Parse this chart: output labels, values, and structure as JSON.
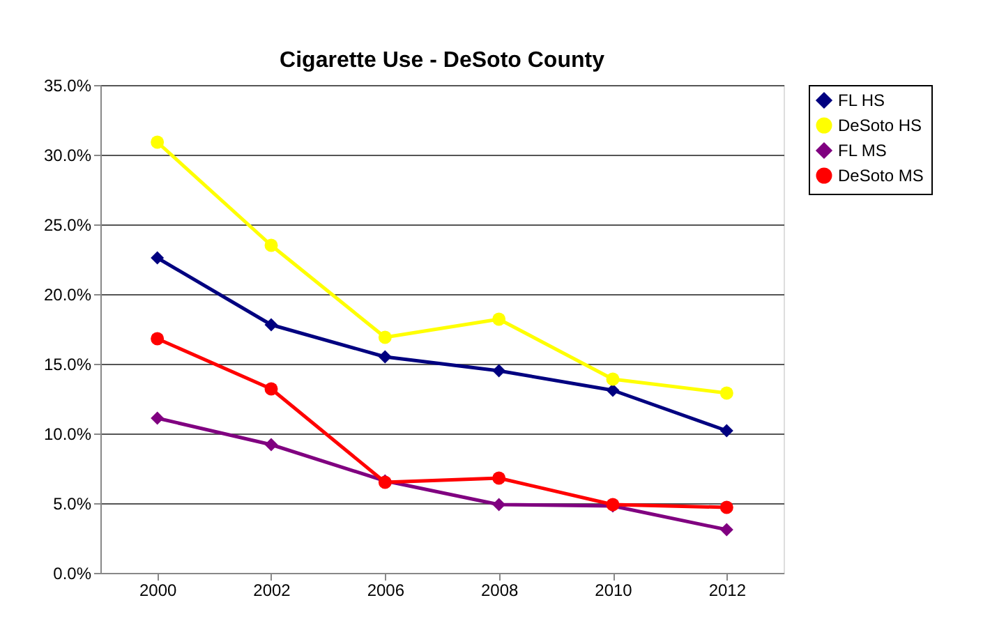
{
  "chart_data": {
    "type": "line",
    "title": "Cigarette Use - DeSoto County",
    "categories": [
      "2000",
      "2002",
      "2006",
      "2008",
      "2010",
      "2012"
    ],
    "series": [
      {
        "name": "FL HS",
        "color": "#000080",
        "marker": "diamond",
        "values": [
          22.6,
          17.8,
          15.5,
          14.5,
          13.1,
          10.2
        ]
      },
      {
        "name": "DeSoto HS",
        "color": "#ffff00",
        "marker": "circle",
        "values": [
          30.9,
          23.5,
          16.9,
          18.2,
          13.9,
          12.9
        ]
      },
      {
        "name": "FL MS",
        "color": "#800080",
        "marker": "diamond",
        "values": [
          11.1,
          9.2,
          6.6,
          4.9,
          4.8,
          3.1
        ]
      },
      {
        "name": "DeSoto MS",
        "color": "#ff0000",
        "marker": "circle",
        "values": [
          16.8,
          13.2,
          6.5,
          6.8,
          4.9,
          4.7
        ]
      }
    ],
    "ylim": [
      0,
      35
    ],
    "yticks": [
      {
        "value": 0,
        "label": "0.0%"
      },
      {
        "value": 5,
        "label": "5.0%"
      },
      {
        "value": 10,
        "label": "10.0%"
      },
      {
        "value": 15,
        "label": "15.0%"
      },
      {
        "value": 20,
        "label": "20.0%"
      },
      {
        "value": 25,
        "label": "25.0%"
      },
      {
        "value": 30,
        "label": "30.0%"
      },
      {
        "value": 35,
        "label": "35.0%"
      }
    ],
    "grid": "y",
    "legend": "right",
    "line_style": "solid"
  }
}
